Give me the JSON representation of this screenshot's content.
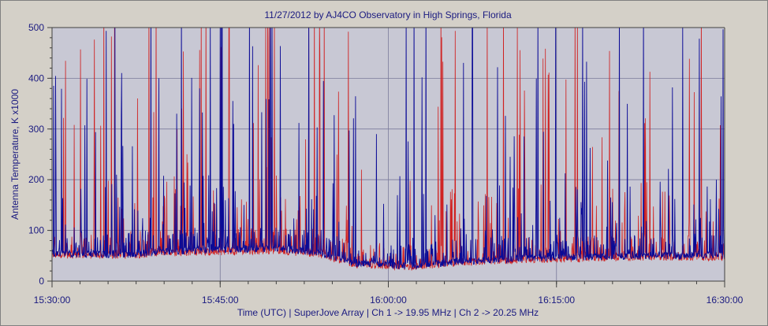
{
  "chart_data": {
    "type": "line",
    "title": "11/27/2012  by  AJ4CO Observatory  in  High Springs, Florida",
    "xlabel": "Time (UTC)  |  SuperJove Array  |  Ch 1 -> 19.95 MHz  |  Ch 2 -> 20.25 MHz",
    "ylabel": "Antenna Temperature, K x1000",
    "x_ticks": [
      "15:30:00",
      "15:45:00",
      "16:00:00",
      "16:15:00",
      "16:30:00"
    ],
    "x_range_minutes": [
      0,
      60
    ],
    "y_ticks": [
      0,
      100,
      200,
      300,
      400,
      500
    ],
    "ylim": [
      0,
      500
    ],
    "grid": true,
    "series": [
      {
        "name": "Ch 1 -> 19.95 MHz",
        "color": "#0a0a96",
        "baseline": [
          {
            "t": 0,
            "v": 55
          },
          {
            "t": 6,
            "v": 52
          },
          {
            "t": 10,
            "v": 58
          },
          {
            "t": 15,
            "v": 62
          },
          {
            "t": 20,
            "v": 65
          },
          {
            "t": 24,
            "v": 55
          },
          {
            "t": 27,
            "v": 35
          },
          {
            "t": 32,
            "v": 30
          },
          {
            "t": 36,
            "v": 38
          },
          {
            "t": 42,
            "v": 45
          },
          {
            "t": 48,
            "v": 48
          },
          {
            "t": 54,
            "v": 50
          },
          {
            "t": 60,
            "v": 50
          }
        ]
      },
      {
        "name": "Ch 2 -> 20.25 MHz",
        "color": "#d02020",
        "baseline": [
          {
            "t": 0,
            "v": 52
          },
          {
            "t": 6,
            "v": 50
          },
          {
            "t": 10,
            "v": 55
          },
          {
            "t": 15,
            "v": 58
          },
          {
            "t": 20,
            "v": 60
          },
          {
            "t": 24,
            "v": 52
          },
          {
            "t": 27,
            "v": 33
          },
          {
            "t": 32,
            "v": 28
          },
          {
            "t": 36,
            "v": 36
          },
          {
            "t": 42,
            "v": 42
          },
          {
            "t": 48,
            "v": 45
          },
          {
            "t": 54,
            "v": 47
          },
          {
            "t": 60,
            "v": 47
          }
        ]
      }
    ]
  },
  "colors": {
    "plot_background": "#c8c8d4",
    "grid": "#7a7a9a",
    "axis": "#404040",
    "text": "#1a1a80"
  }
}
